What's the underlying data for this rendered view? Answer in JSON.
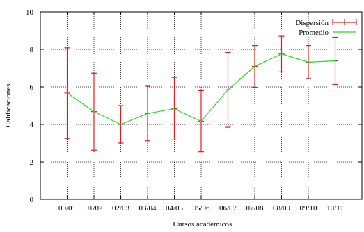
{
  "chart_data": {
    "type": "line",
    "title": "",
    "xlabel": "Cursos académicos",
    "ylabel": "Calificaciones",
    "ylim": [
      0,
      10
    ],
    "yticks": [
      0,
      2,
      4,
      6,
      8,
      10
    ],
    "grid": true,
    "grid_style": "dotted",
    "legend_position": "top-right",
    "categories": [
      "00/01",
      "01/02",
      "02/03",
      "03/04",
      "04/05",
      "05/06",
      "06/07",
      "07/08",
      "08/09",
      "09/10",
      "10/11"
    ],
    "series": [
      {
        "name": "Dispersión",
        "kind": "error-bars",
        "color": "#e31a1c",
        "center": [
          5.67,
          4.68,
          4.0,
          4.58,
          4.83,
          4.16,
          5.84,
          7.09,
          7.75,
          7.32,
          7.39
        ],
        "low": [
          3.25,
          2.62,
          3.0,
          3.12,
          3.17,
          2.53,
          3.85,
          5.98,
          6.8,
          6.44,
          6.13
        ],
        "high": [
          8.08,
          6.73,
          5.0,
          6.04,
          6.49,
          5.8,
          7.83,
          8.2,
          8.7,
          8.2,
          8.65
        ]
      },
      {
        "name": "Promedio",
        "kind": "line",
        "color": "#22dd22",
        "values": [
          5.67,
          4.68,
          4.0,
          4.58,
          4.83,
          4.16,
          5.84,
          7.09,
          7.75,
          7.32,
          7.39
        ]
      }
    ]
  }
}
